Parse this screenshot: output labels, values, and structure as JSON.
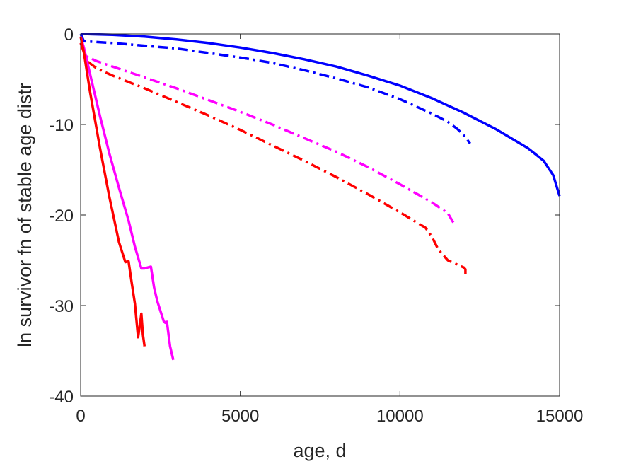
{
  "chart_data": {
    "type": "line",
    "title": "",
    "xlabel": "age, d",
    "ylabel": "ln survivor fn of stable age distr",
    "xlim": [
      0,
      15000
    ],
    "ylim": [
      -40,
      0
    ],
    "xticks": [
      0,
      5000,
      10000,
      15000
    ],
    "xtick_labels": [
      "0",
      "5000",
      "10000",
      "15000"
    ],
    "yticks": [
      0,
      -10,
      -20,
      -30,
      -40
    ],
    "ytick_labels": [
      "0",
      "-10",
      "-20",
      "-30",
      "-40"
    ],
    "grid": false,
    "legend": "none",
    "series": [
      {
        "color": "#0000FF",
        "style": "solid",
        "x": [
          0,
          1000,
          2000,
          3000,
          4000,
          5000,
          6000,
          7000,
          8000,
          9000,
          10000,
          11000,
          12000,
          13000,
          14000,
          14500,
          14800,
          15000
        ],
        "y": [
          0,
          -0.1,
          -0.3,
          -0.6,
          -1.0,
          -1.5,
          -2.1,
          -2.8,
          -3.6,
          -4.6,
          -5.7,
          -7.1,
          -8.7,
          -10.5,
          -12.6,
          -14.0,
          -15.6,
          -17.9
        ]
      },
      {
        "color": "#0000FF",
        "style": "dashdot",
        "x": [
          0,
          100,
          1000,
          2000,
          3000,
          4000,
          5000,
          6000,
          7000,
          8000,
          9000,
          10000,
          11000,
          11500,
          11800,
          12000,
          12200
        ],
        "y": [
          0,
          -0.8,
          -1.0,
          -1.3,
          -1.6,
          -2.1,
          -2.6,
          -3.2,
          -4.0,
          -4.9,
          -5.9,
          -7.2,
          -8.8,
          -9.7,
          -10.5,
          -11.2,
          -12.1
        ]
      },
      {
        "color": "#FF00FF",
        "style": "dashdot",
        "x": [
          0,
          200,
          500,
          1000,
          2000,
          3000,
          4000,
          5000,
          6000,
          7000,
          8000,
          9000,
          10000,
          11000,
          11500,
          11700
        ],
        "y": [
          -1.0,
          -2.5,
          -3.0,
          -3.6,
          -4.8,
          -6.0,
          -7.3,
          -8.6,
          -10.0,
          -11.5,
          -13.0,
          -14.7,
          -16.6,
          -18.6,
          -19.8,
          -21.0
        ]
      },
      {
        "color": "#FF0000",
        "style": "dashdot",
        "x": [
          0,
          200,
          500,
          1000,
          2000,
          3000,
          4000,
          5000,
          6000,
          7000,
          8000,
          9000,
          10000,
          10800,
          11000,
          11200,
          11500,
          12000,
          12050,
          12050
        ],
        "y": [
          -1.0,
          -3.0,
          -3.8,
          -4.6,
          -6.0,
          -7.5,
          -9.0,
          -10.6,
          -12.3,
          -14.0,
          -15.8,
          -17.7,
          -19.7,
          -21.4,
          -22.4,
          -23.8,
          -25.0,
          -25.8,
          -26.0,
          -26.8
        ]
      },
      {
        "color": "#FF00FF",
        "style": "solid",
        "x": [
          0,
          100,
          300,
          600,
          900,
          1200,
          1500,
          1700,
          1900,
          2000,
          2100,
          2200,
          2300,
          2400,
          2600,
          2650,
          2700,
          2800,
          2900
        ],
        "y": [
          -0.3,
          -1.5,
          -4.5,
          -9.0,
          -13.2,
          -17.0,
          -20.6,
          -23.5,
          -25.9,
          -25.9,
          -25.8,
          -25.7,
          -28.0,
          -29.5,
          -31.7,
          -31.9,
          -31.8,
          -34.5,
          -36.0
        ]
      },
      {
        "color": "#FF0000",
        "style": "solid",
        "x": [
          0,
          100,
          300,
          600,
          900,
          1200,
          1400,
          1500,
          1600,
          1700,
          1800,
          1850,
          1900,
          1950,
          2000
        ],
        "y": [
          -0.3,
          -2.0,
          -6.5,
          -12.5,
          -18.0,
          -23.0,
          -25.2,
          -25.1,
          -27.5,
          -29.8,
          -33.5,
          -32.3,
          -30.9,
          -33.2,
          -34.5
        ]
      }
    ]
  }
}
